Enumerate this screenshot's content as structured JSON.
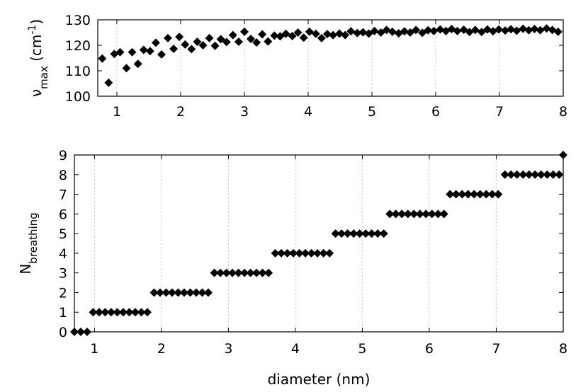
{
  "chart_data": [
    {
      "type": "scatter",
      "ylabel": {
        "base": "ν",
        "sub": "max",
        "rest": " (cm",
        "sup": "-1",
        "close": ")"
      },
      "xlim": [
        0.7,
        8
      ],
      "ylim": [
        100,
        130
      ],
      "xticks": [
        "1",
        "2",
        "3",
        "4",
        "5",
        "6",
        "7",
        "8"
      ],
      "yticks": [
        "100",
        "110",
        "120",
        "130"
      ],
      "grid": "vertical-dotted",
      "marker": "diamond",
      "color": "#000000",
      "points": [
        [
          0.77,
          114.8
        ],
        [
          0.87,
          105.3
        ],
        [
          0.96,
          116.6
        ],
        [
          1.05,
          117.3
        ],
        [
          1.15,
          111.0
        ],
        [
          1.24,
          117.3
        ],
        [
          1.33,
          112.7
        ],
        [
          1.42,
          118.2
        ],
        [
          1.52,
          117.7
        ],
        [
          1.61,
          121.0
        ],
        [
          1.7,
          116.4
        ],
        [
          1.8,
          122.8
        ],
        [
          1.89,
          118.6
        ],
        [
          1.98,
          123.3
        ],
        [
          2.07,
          120.3
        ],
        [
          2.17,
          118.5
        ],
        [
          2.26,
          121.4
        ],
        [
          2.35,
          120.0
        ],
        [
          2.45,
          122.8
        ],
        [
          2.54,
          119.8
        ],
        [
          2.63,
          122.4
        ],
        [
          2.72,
          121.3
        ],
        [
          2.82,
          124.0
        ],
        [
          2.91,
          121.4
        ],
        [
          3.0,
          125.3
        ],
        [
          3.1,
          122.5
        ],
        [
          3.19,
          121.1
        ],
        [
          3.28,
          124.3
        ],
        [
          3.37,
          121.5
        ],
        [
          3.47,
          123.8
        ],
        [
          3.56,
          123.5
        ],
        [
          3.65,
          124.5
        ],
        [
          3.75,
          123.6
        ],
        [
          3.84,
          125.0
        ],
        [
          3.93,
          123.0
        ],
        [
          4.02,
          125.3
        ],
        [
          4.12,
          124.5
        ],
        [
          4.21,
          122.8
        ],
        [
          4.3,
          124.4
        ],
        [
          4.39,
          124.0
        ],
        [
          4.49,
          124.6
        ],
        [
          4.58,
          124.0
        ],
        [
          4.67,
          125.5
        ],
        [
          4.77,
          124.8
        ],
        [
          4.86,
          125.1
        ],
        [
          4.95,
          124.6
        ],
        [
          5.04,
          125.6
        ],
        [
          5.14,
          125.0
        ],
        [
          5.23,
          126.0
        ],
        [
          5.32,
          125.3
        ],
        [
          5.42,
          124.7
        ],
        [
          5.51,
          125.5
        ],
        [
          5.6,
          125.0
        ],
        [
          5.69,
          126.0
        ],
        [
          5.79,
          124.9
        ],
        [
          5.88,
          125.9
        ],
        [
          5.97,
          125.6
        ],
        [
          6.07,
          126.2
        ],
        [
          6.16,
          125.6
        ],
        [
          6.25,
          126.4
        ],
        [
          6.34,
          125.6
        ],
        [
          6.44,
          126.1
        ],
        [
          6.53,
          125.2
        ],
        [
          6.62,
          126.0
        ],
        [
          6.72,
          125.2
        ],
        [
          6.81,
          126.2
        ],
        [
          6.9,
          125.5
        ],
        [
          6.99,
          126.2
        ],
        [
          7.09,
          125.8
        ],
        [
          7.18,
          126.3
        ],
        [
          7.27,
          125.7
        ],
        [
          7.37,
          126.5
        ],
        [
          7.46,
          125.9
        ],
        [
          7.55,
          126.4
        ],
        [
          7.64,
          125.9
        ],
        [
          7.74,
          126.6
        ],
        [
          7.83,
          126.0
        ],
        [
          7.92,
          125.3
        ]
      ]
    },
    {
      "type": "scatter",
      "xlabel": "diameter (nm)",
      "ylabel": {
        "base": "N",
        "sub": "breathing"
      },
      "xlim": [
        0.7,
        8
      ],
      "ylim": [
        0,
        9
      ],
      "xticks": [
        "1",
        "2",
        "3",
        "4",
        "5",
        "6",
        "7",
        "8"
      ],
      "yticks": [
        "0",
        "1",
        "2",
        "3",
        "4",
        "5",
        "6",
        "7",
        "8",
        "9"
      ],
      "grid": "vertical-dotted",
      "marker": "diamond",
      "color": "#000000",
      "steps": [
        {
          "y": 0,
          "from": 0.7,
          "to": 0.89,
          "count": 3
        },
        {
          "y": 1,
          "from": 0.98,
          "to": 1.79,
          "count": 10
        },
        {
          "y": 2,
          "from": 1.89,
          "to": 2.7,
          "count": 10
        },
        {
          "y": 3,
          "from": 2.79,
          "to": 3.6,
          "count": 10
        },
        {
          "y": 4,
          "from": 3.7,
          "to": 4.51,
          "count": 10
        },
        {
          "y": 5,
          "from": 4.6,
          "to": 5.32,
          "count": 9
        },
        {
          "y": 6,
          "from": 5.41,
          "to": 6.22,
          "count": 10
        },
        {
          "y": 7,
          "from": 6.31,
          "to": 7.03,
          "count": 9
        },
        {
          "y": 8,
          "from": 7.13,
          "to": 7.94,
          "count": 10
        },
        {
          "y": 9,
          "from": 8.0,
          "to": 8.0,
          "count": 1
        }
      ]
    }
  ]
}
